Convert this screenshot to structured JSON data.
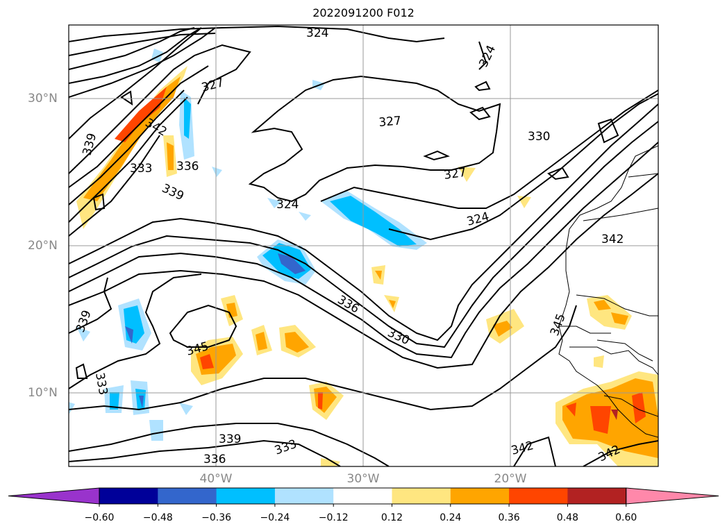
{
  "title": "2022091200 F012",
  "lat_labels": [
    "30°N",
    "20°N",
    "10°N"
  ],
  "lon_labels": [
    "40°W",
    "30°W",
    "20°W"
  ],
  "contour_labels": [
    "324",
    "327",
    "327",
    "327",
    "324",
    "324",
    "324",
    "330",
    "333",
    "339",
    "339",
    "333",
    "336",
    "330",
    "336",
    "345",
    "342",
    "342",
    "345",
    "339",
    "339",
    "333",
    "336",
    "342",
    "342"
  ],
  "colorbar": {
    "colors": [
      "#9933cc",
      "#000099",
      "#3366cc",
      "#00bfff",
      "#b0e2ff",
      "#ffffff",
      "#ffe680",
      "#ffa500",
      "#ff4500",
      "#b22222",
      "#ff88aa"
    ],
    "ticks": [
      "−0.60",
      "−0.48",
      "−0.36",
      "−0.24",
      "−0.12",
      "0.12",
      "0.24",
      "0.36",
      "0.48",
      "0.60"
    ]
  }
}
